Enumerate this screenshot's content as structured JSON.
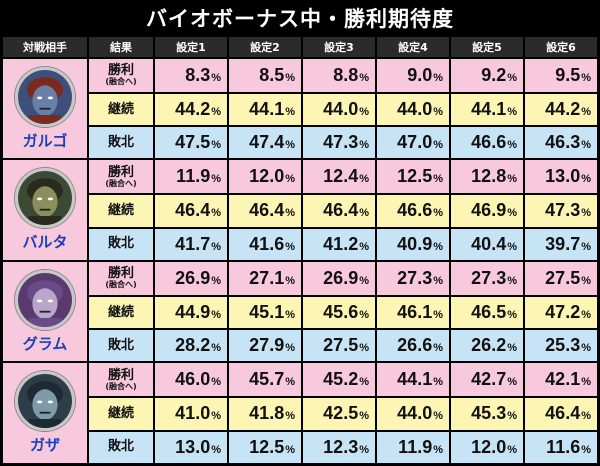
{
  "title": "バイオボーナス中・勝利期待度",
  "headers": [
    "対戦相手",
    "結果",
    "設定1",
    "設定2",
    "設定3",
    "設定4",
    "設定5",
    "設定6"
  ],
  "pct_symbol": "%",
  "colors": {
    "win": "#f8c8dc",
    "continue": "#fdf5b4",
    "lose": "#c7e4f6",
    "name": "#1a3fbf"
  },
  "opponents": [
    {
      "name": "ガルゴ",
      "avatar_icon": "garugo-portrait-icon",
      "rows": [
        {
          "label": "勝利",
          "sub": "(融合へ)",
          "values": [
            "8.3",
            "8.5",
            "8.8",
            "9.0",
            "9.2",
            "9.5"
          ]
        },
        {
          "label": "継続",
          "sub": "",
          "values": [
            "44.2",
            "44.1",
            "44.0",
            "44.0",
            "44.1",
            "44.2"
          ]
        },
        {
          "label": "敗北",
          "sub": "",
          "values": [
            "47.5",
            "47.4",
            "47.3",
            "47.0",
            "46.6",
            "46.3"
          ]
        }
      ]
    },
    {
      "name": "バルタ",
      "avatar_icon": "baruta-portrait-icon",
      "rows": [
        {
          "label": "勝利",
          "sub": "(融合へ)",
          "values": [
            "11.9",
            "12.0",
            "12.4",
            "12.5",
            "12.8",
            "13.0"
          ]
        },
        {
          "label": "継続",
          "sub": "",
          "values": [
            "46.4",
            "46.4",
            "46.4",
            "46.6",
            "46.9",
            "47.3"
          ]
        },
        {
          "label": "敗北",
          "sub": "",
          "values": [
            "41.7",
            "41.6",
            "41.2",
            "40.9",
            "40.4",
            "39.7"
          ]
        }
      ]
    },
    {
      "name": "グラム",
      "avatar_icon": "guramu-portrait-icon",
      "rows": [
        {
          "label": "勝利",
          "sub": "(融合へ)",
          "values": [
            "26.9",
            "27.1",
            "26.9",
            "27.3",
            "27.3",
            "27.5"
          ]
        },
        {
          "label": "継続",
          "sub": "",
          "values": [
            "44.9",
            "45.1",
            "45.6",
            "46.1",
            "46.5",
            "47.2"
          ]
        },
        {
          "label": "敗北",
          "sub": "",
          "values": [
            "28.2",
            "27.9",
            "27.5",
            "26.6",
            "26.2",
            "25.3"
          ]
        }
      ]
    },
    {
      "name": "ガザ",
      "avatar_icon": "gaza-portrait-icon",
      "rows": [
        {
          "label": "勝利",
          "sub": "(融合へ)",
          "values": [
            "46.0",
            "45.7",
            "45.2",
            "44.1",
            "42.7",
            "42.1"
          ]
        },
        {
          "label": "継続",
          "sub": "",
          "values": [
            "41.0",
            "41.8",
            "42.5",
            "44.0",
            "45.3",
            "46.4"
          ]
        },
        {
          "label": "敗北",
          "sub": "",
          "values": [
            "13.0",
            "12.5",
            "12.3",
            "11.9",
            "12.0",
            "11.6"
          ]
        }
      ]
    }
  ]
}
